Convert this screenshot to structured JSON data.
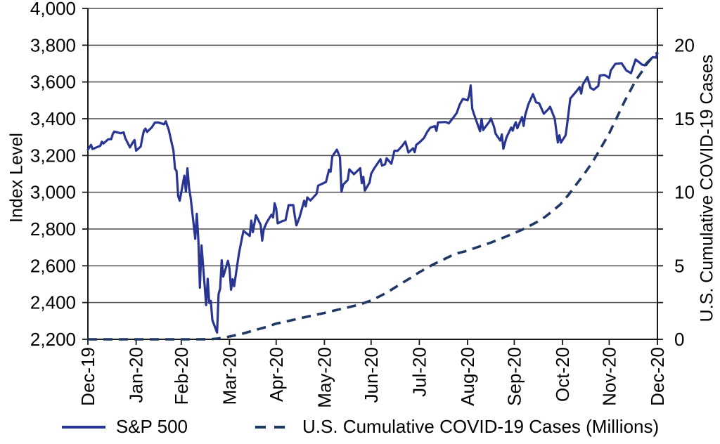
{
  "page": {
    "background": "#ffffff",
    "text_color": "#000000"
  },
  "chart_data": {
    "type": "line",
    "title": "",
    "grid": {
      "on": true,
      "step": 200,
      "color": "#4d4d4d"
    },
    "left_axis": {
      "label": "Index Level",
      "min": 2200,
      "max": 4000,
      "ticks": [
        {
          "v": 2200,
          "label": "2,200"
        },
        {
          "v": 2400,
          "label": "2,400"
        },
        {
          "v": 2600,
          "label": "2,600"
        },
        {
          "v": 2800,
          "label": "2,800"
        },
        {
          "v": 3000,
          "label": "3,000"
        },
        {
          "v": 3200,
          "label": "3,200"
        },
        {
          "v": 3400,
          "label": "3,400"
        },
        {
          "v": 3600,
          "label": "3,600"
        },
        {
          "v": 3800,
          "label": "3,800"
        },
        {
          "v": 4000,
          "label": "4,000"
        }
      ]
    },
    "right_axis": {
      "label": "U.S. Cumulative COVID-19 Cases",
      "min": 0,
      "max": 20,
      "align": {
        "lo": 0,
        "hi": 20,
        "left_lo": 2200,
        "left_hi": 3800
      },
      "ticks": [
        {
          "v": 0,
          "label": "0"
        },
        {
          "v": 5,
          "label": "5"
        },
        {
          "v": 10,
          "label": "10"
        },
        {
          "v": 15,
          "label": "15"
        },
        {
          "v": 20,
          "label": "20"
        }
      ]
    },
    "x_axis": {
      "unit": "days since 2019-12-31",
      "domain": [
        0,
        366
      ],
      "ticks": [
        {
          "day": 0,
          "label": "Dec-19"
        },
        {
          "day": 31,
          "label": "Jan-20"
        },
        {
          "day": 60,
          "label": "Feb-20"
        },
        {
          "day": 91,
          "label": "Mar-20"
        },
        {
          "day": 121,
          "label": "Apr-20"
        },
        {
          "day": 152,
          "label": "May-20"
        },
        {
          "day": 182,
          "label": "Jun-20"
        },
        {
          "day": 213,
          "label": "Jul-20"
        },
        {
          "day": 244,
          "label": "Aug-20"
        },
        {
          "day": 274,
          "label": "Sep-20"
        },
        {
          "day": 305,
          "label": "Oct-20"
        },
        {
          "day": 335,
          "label": "Nov-20"
        },
        {
          "day": 366,
          "label": "Dec-20"
        }
      ]
    },
    "series": [
      {
        "name": "S&P 500",
        "axis": "left",
        "style": "solid",
        "color": "#283593",
        "width": 3.2,
        "points": [
          [
            0,
            3231
          ],
          [
            2,
            3258
          ],
          [
            3,
            3235
          ],
          [
            6,
            3246
          ],
          [
            8,
            3253
          ],
          [
            9,
            3275
          ],
          [
            10,
            3265
          ],
          [
            13,
            3288
          ],
          [
            15,
            3289
          ],
          [
            16,
            3317
          ],
          [
            17,
            3330
          ],
          [
            21,
            3321
          ],
          [
            23,
            3326
          ],
          [
            24,
            3295
          ],
          [
            27,
            3244
          ],
          [
            29,
            3273
          ],
          [
            30,
            3284
          ],
          [
            31,
            3226
          ],
          [
            34,
            3249
          ],
          [
            35,
            3298
          ],
          [
            36,
            3335
          ],
          [
            37,
            3346
          ],
          [
            38,
            3328
          ],
          [
            41,
            3352
          ],
          [
            43,
            3379
          ],
          [
            45,
            3380
          ],
          [
            49,
            3370
          ],
          [
            50,
            3386
          ],
          [
            52,
            3338
          ],
          [
            55,
            3226
          ],
          [
            56,
            3128
          ],
          [
            57,
            3116
          ],
          [
            58,
            2979
          ],
          [
            59,
            2954
          ],
          [
            62,
            3090
          ],
          [
            63,
            3003
          ],
          [
            64,
            3130
          ],
          [
            65,
            3024
          ],
          [
            66,
            2972
          ],
          [
            69,
            2747
          ],
          [
            70,
            2882
          ],
          [
            71,
            2741
          ],
          [
            72,
            2481
          ],
          [
            73,
            2711
          ],
          [
            76,
            2386
          ],
          [
            77,
            2529
          ],
          [
            78,
            2398
          ],
          [
            79,
            2409
          ],
          [
            80,
            2305
          ],
          [
            83,
            2237
          ],
          [
            84,
            2447
          ],
          [
            85,
            2476
          ],
          [
            86,
            2630
          ],
          [
            87,
            2541
          ],
          [
            90,
            2627
          ],
          [
            91,
            2585
          ],
          [
            92,
            2470
          ],
          [
            93,
            2527
          ],
          [
            94,
            2489
          ],
          [
            97,
            2664
          ],
          [
            99,
            2750
          ],
          [
            100,
            2790
          ],
          [
            104,
            2762
          ],
          [
            105,
            2846
          ],
          [
            106,
            2783
          ],
          [
            108,
            2875
          ],
          [
            111,
            2823
          ],
          [
            112,
            2737
          ],
          [
            113,
            2799
          ],
          [
            115,
            2837
          ],
          [
            118,
            2878
          ],
          [
            119,
            2863
          ],
          [
            120,
            2940
          ],
          [
            121,
            2912
          ],
          [
            122,
            2831
          ],
          [
            125,
            2843
          ],
          [
            127,
            2848
          ],
          [
            129,
            2930
          ],
          [
            132,
            2930
          ],
          [
            133,
            2870
          ],
          [
            134,
            2820
          ],
          [
            136,
            2864
          ],
          [
            139,
            2954
          ],
          [
            140,
            2923
          ],
          [
            141,
            2972
          ],
          [
            143,
            2955
          ],
          [
            147,
            2992
          ],
          [
            148,
            3036
          ],
          [
            150,
            3044
          ],
          [
            153,
            3056
          ],
          [
            155,
            3123
          ],
          [
            156,
            3112
          ],
          [
            157,
            3194
          ],
          [
            160,
            3232
          ],
          [
            162,
            3190
          ],
          [
            163,
            3002
          ],
          [
            164,
            3041
          ],
          [
            167,
            3067
          ],
          [
            168,
            3125
          ],
          [
            171,
            3098
          ],
          [
            175,
            3131
          ],
          [
            176,
            3050
          ],
          [
            177,
            3084
          ],
          [
            178,
            3009
          ],
          [
            181,
            3053
          ],
          [
            182,
            3100
          ],
          [
            184,
            3130
          ],
          [
            188,
            3180
          ],
          [
            189,
            3145
          ],
          [
            191,
            3152
          ],
          [
            192,
            3185
          ],
          [
            195,
            3155
          ],
          [
            197,
            3226
          ],
          [
            199,
            3225
          ],
          [
            202,
            3252
          ],
          [
            204,
            3276
          ],
          [
            206,
            3216
          ],
          [
            209,
            3239
          ],
          [
            210,
            3218
          ],
          [
            211,
            3258
          ],
          [
            213,
            3271
          ],
          [
            216,
            3295
          ],
          [
            218,
            3328
          ],
          [
            220,
            3351
          ],
          [
            223,
            3360
          ],
          [
            224,
            3334
          ],
          [
            225,
            3380
          ],
          [
            230,
            3382
          ],
          [
            232,
            3375
          ],
          [
            234,
            3397
          ],
          [
            237,
            3431
          ],
          [
            239,
            3478
          ],
          [
            241,
            3508
          ],
          [
            244,
            3500
          ],
          [
            245,
            3527
          ],
          [
            246,
            3581
          ],
          [
            247,
            3455
          ],
          [
            248,
            3427
          ],
          [
            252,
            3332
          ],
          [
            253,
            3399
          ],
          [
            254,
            3339
          ],
          [
            258,
            3384
          ],
          [
            259,
            3401
          ],
          [
            261,
            3357
          ],
          [
            262,
            3319
          ],
          [
            265,
            3281
          ],
          [
            266,
            3315
          ],
          [
            267,
            3237
          ],
          [
            269,
            3298
          ],
          [
            272,
            3352
          ],
          [
            273,
            3335
          ],
          [
            274,
            3363
          ],
          [
            275,
            3381
          ],
          [
            276,
            3348
          ],
          [
            279,
            3409
          ],
          [
            280,
            3361
          ],
          [
            281,
            3419
          ],
          [
            283,
            3477
          ],
          [
            286,
            3534
          ],
          [
            288,
            3489
          ],
          [
            290,
            3484
          ],
          [
            293,
            3427
          ],
          [
            296,
            3453
          ],
          [
            297,
            3465
          ],
          [
            300,
            3401
          ],
          [
            302,
            3271
          ],
          [
            303,
            3310
          ],
          [
            304,
            3270
          ],
          [
            307,
            3310
          ],
          [
            308,
            3369
          ],
          [
            310,
            3510
          ],
          [
            314,
            3550
          ],
          [
            316,
            3572
          ],
          [
            317,
            3537
          ],
          [
            318,
            3585
          ],
          [
            321,
            3627
          ],
          [
            323,
            3568
          ],
          [
            325,
            3558
          ],
          [
            328,
            3578
          ],
          [
            329,
            3635
          ],
          [
            332,
            3638
          ],
          [
            335,
            3622
          ],
          [
            336,
            3662
          ],
          [
            339,
            3699
          ],
          [
            343,
            3702
          ],
          [
            346,
            3663
          ],
          [
            349,
            3648
          ],
          [
            352,
            3722
          ],
          [
            354,
            3709
          ],
          [
            356,
            3695
          ],
          [
            358,
            3690
          ],
          [
            359,
            3703
          ],
          [
            363,
            3735
          ],
          [
            365,
            3732
          ],
          [
            366,
            3756
          ]
        ]
      },
      {
        "name": "U.S. Cumulative COVID-19 Cases (Millions)",
        "axis": "right",
        "style": "dashed",
        "color": "#1f3864",
        "width": 3.6,
        "points": [
          [
            0,
            0
          ],
          [
            15,
            0
          ],
          [
            31,
            0
          ],
          [
            45,
            0
          ],
          [
            60,
            0
          ],
          [
            70,
            0.001
          ],
          [
            75,
            0.004
          ],
          [
            80,
            0.02
          ],
          [
            83,
            0.05
          ],
          [
            86,
            0.09
          ],
          [
            88,
            0.13
          ],
          [
            91,
            0.19
          ],
          [
            95,
            0.28
          ],
          [
            100,
            0.4
          ],
          [
            105,
            0.56
          ],
          [
            110,
            0.7
          ],
          [
            115,
            0.85
          ],
          [
            121,
            1.07
          ],
          [
            126,
            1.18
          ],
          [
            131,
            1.3
          ],
          [
            136,
            1.42
          ],
          [
            141,
            1.54
          ],
          [
            146,
            1.66
          ],
          [
            152,
            1.79
          ],
          [
            157,
            1.92
          ],
          [
            162,
            2.05
          ],
          [
            167,
            2.17
          ],
          [
            172,
            2.3
          ],
          [
            177,
            2.45
          ],
          [
            182,
            2.64
          ],
          [
            187,
            2.9
          ],
          [
            192,
            3.17
          ],
          [
            197,
            3.5
          ],
          [
            202,
            3.83
          ],
          [
            207,
            4.15
          ],
          [
            213,
            4.56
          ],
          [
            218,
            4.87
          ],
          [
            223,
            5.15
          ],
          [
            228,
            5.4
          ],
          [
            233,
            5.66
          ],
          [
            238,
            5.86
          ],
          [
            244,
            6.03
          ],
          [
            249,
            6.22
          ],
          [
            254,
            6.4
          ],
          [
            259,
            6.58
          ],
          [
            264,
            6.79
          ],
          [
            269,
            7.0
          ],
          [
            274,
            7.23
          ],
          [
            279,
            7.45
          ],
          [
            284,
            7.72
          ],
          [
            289,
            8.0
          ],
          [
            294,
            8.34
          ],
          [
            299,
            8.76
          ],
          [
            304,
            9.21
          ],
          [
            309,
            9.85
          ],
          [
            314,
            10.55
          ],
          [
            319,
            11.25
          ],
          [
            324,
            12.0
          ],
          [
            329,
            12.9
          ],
          [
            335,
            14.0
          ],
          [
            340,
            15.1
          ],
          [
            345,
            16.2
          ],
          [
            349,
            17.0
          ],
          [
            352,
            17.6
          ],
          [
            356,
            18.2
          ],
          [
            359,
            18.7
          ],
          [
            363,
            19.2
          ],
          [
            366,
            19.5
          ]
        ]
      }
    ],
    "legend": {
      "position": "bottom",
      "items": [
        {
          "label": "S&P 500",
          "style": "solid",
          "color": "#283593"
        },
        {
          "label": "U.S. Cumulative COVID-19 Cases (Millions)",
          "style": "dashed",
          "color": "#1f3864"
        }
      ]
    }
  }
}
